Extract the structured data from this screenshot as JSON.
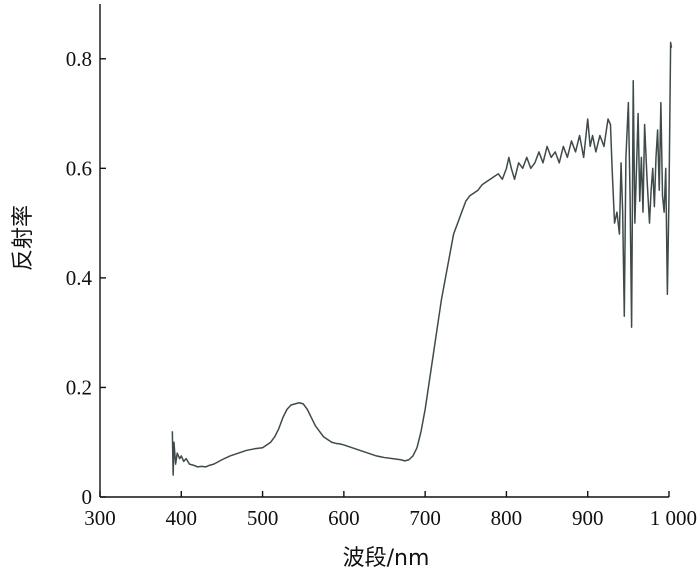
{
  "chart_data": {
    "type": "line",
    "xlabel": "波段/nm",
    "ylabel": "反射率",
    "xlim": [
      300,
      1000
    ],
    "ylim": [
      0,
      0.9
    ],
    "x_ticks": [
      300,
      400,
      500,
      600,
      700,
      800,
      900,
      1000
    ],
    "x_tick_labels": [
      "300",
      "400",
      "500",
      "600",
      "700",
      "800",
      "900",
      "1 000"
    ],
    "y_ticks": [
      0,
      0.2,
      0.4,
      0.6,
      0.8
    ],
    "y_tick_labels": [
      "0",
      "0.2",
      "0.4",
      "0.6",
      "0.8"
    ],
    "grid": false,
    "line_color": "#3f4a4a",
    "series": [
      {
        "x": [
          389,
          390,
          391,
          393,
          395,
          398,
          400,
          403,
          406,
          410,
          415,
          420,
          425,
          430,
          435,
          440,
          450,
          460,
          470,
          480,
          490,
          500,
          505,
          510,
          515,
          520,
          525,
          530,
          535,
          540,
          545,
          550,
          555,
          560,
          565,
          570,
          575,
          580,
          585,
          590,
          595,
          600,
          610,
          620,
          630,
          640,
          650,
          660,
          670,
          675,
          680,
          685,
          690,
          695,
          700,
          705,
          710,
          715,
          720,
          725,
          730,
          735,
          740,
          745,
          750,
          755,
          760,
          765,
          770,
          775,
          780,
          785,
          790,
          795,
          800,
          803,
          806,
          810,
          815,
          820,
          825,
          830,
          835,
          840,
          845,
          850,
          855,
          860,
          865,
          870,
          875,
          880,
          885,
          890,
          895,
          900,
          903,
          906,
          910,
          915,
          920,
          925,
          928,
          930,
          933,
          936,
          939,
          941,
          943,
          945,
          947,
          950,
          952,
          954,
          956,
          958,
          960,
          962,
          964,
          966,
          968,
          970,
          973,
          976,
          978,
          980,
          982,
          984,
          986,
          988,
          990,
          992,
          994,
          996,
          998,
          1000,
          1002,
          1003
        ],
        "y": [
          0.12,
          0.04,
          0.1,
          0.06,
          0.08,
          0.07,
          0.075,
          0.065,
          0.07,
          0.06,
          0.058,
          0.055,
          0.056,
          0.055,
          0.058,
          0.06,
          0.068,
          0.075,
          0.08,
          0.085,
          0.088,
          0.09,
          0.095,
          0.1,
          0.11,
          0.125,
          0.145,
          0.16,
          0.168,
          0.17,
          0.172,
          0.17,
          0.16,
          0.145,
          0.13,
          0.12,
          0.11,
          0.105,
          0.1,
          0.098,
          0.097,
          0.095,
          0.09,
          0.085,
          0.08,
          0.075,
          0.072,
          0.07,
          0.068,
          0.066,
          0.068,
          0.075,
          0.09,
          0.12,
          0.16,
          0.21,
          0.26,
          0.31,
          0.36,
          0.4,
          0.44,
          0.48,
          0.5,
          0.52,
          0.54,
          0.55,
          0.555,
          0.56,
          0.57,
          0.575,
          0.58,
          0.585,
          0.59,
          0.58,
          0.6,
          0.62,
          0.6,
          0.58,
          0.61,
          0.6,
          0.62,
          0.6,
          0.61,
          0.63,
          0.61,
          0.64,
          0.62,
          0.63,
          0.61,
          0.64,
          0.62,
          0.65,
          0.63,
          0.66,
          0.62,
          0.69,
          0.64,
          0.66,
          0.63,
          0.66,
          0.64,
          0.69,
          0.68,
          0.6,
          0.5,
          0.52,
          0.48,
          0.61,
          0.52,
          0.33,
          0.62,
          0.72,
          0.56,
          0.31,
          0.76,
          0.5,
          0.6,
          0.7,
          0.54,
          0.62,
          0.52,
          0.68,
          0.58,
          0.5,
          0.56,
          0.6,
          0.53,
          0.62,
          0.67,
          0.56,
          0.72,
          0.55,
          0.52,
          0.6,
          0.37,
          0.55,
          0.83,
          0.82
        ]
      }
    ]
  }
}
